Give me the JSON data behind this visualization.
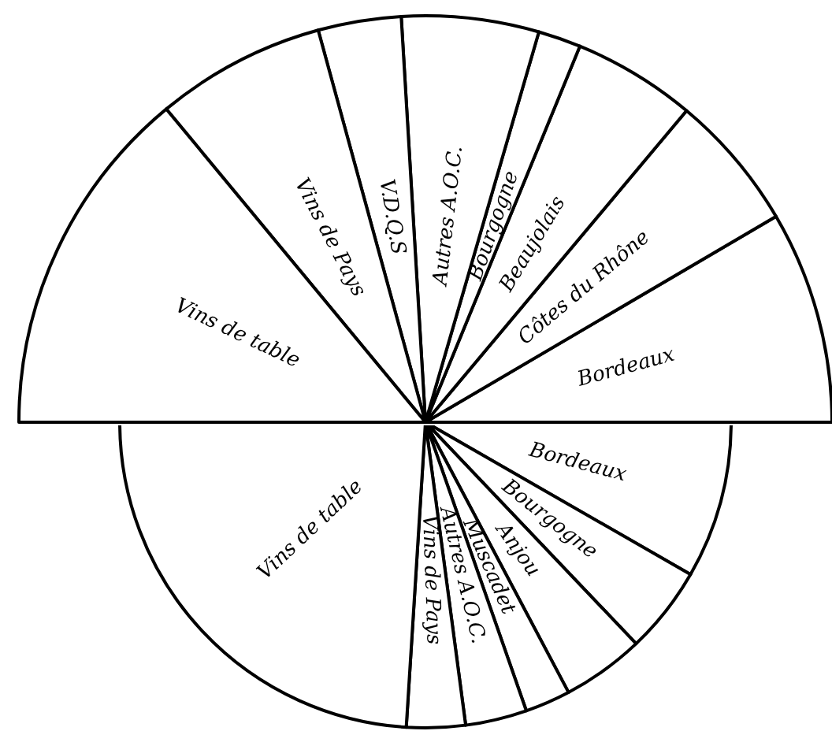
{
  "chart_data": [
    {
      "type": "pie",
      "categories": [
        "Bordeaux",
        "Côtes du Rhône",
        "Beaujolais",
        "Bourgogne",
        "Autres A.O.C.",
        "V.D.Q.S",
        "Vins de Pays",
        "Vins de table"
      ],
      "values": [
        16.9,
        10.9,
        9.8,
        3.4,
        10.9,
        6.6,
        13.5,
        28
      ],
      "colors": [
        "#ffffff",
        "#ffffff",
        "#ffffff",
        "#ffffff",
        "#ffffff",
        "#ffffff",
        "#ffffff",
        "#ffffff"
      ]
    },
    {
      "type": "pie",
      "categories": [
        "Bordeaux",
        "Bourgogne",
        "Anjou",
        "Muscadet",
        "Autres A.O.C.",
        "Vins de Pays",
        "Vins de table"
      ],
      "values": [
        16.6,
        9.2,
        8.7,
        4.8,
        6.5,
        6.2,
        48
      ],
      "colors": [
        "#ffffff",
        "#ffffff",
        "#ffffff",
        "#ffffff",
        "#ffffff",
        "#ffffff",
        "#ffffff"
      ]
    }
  ]
}
